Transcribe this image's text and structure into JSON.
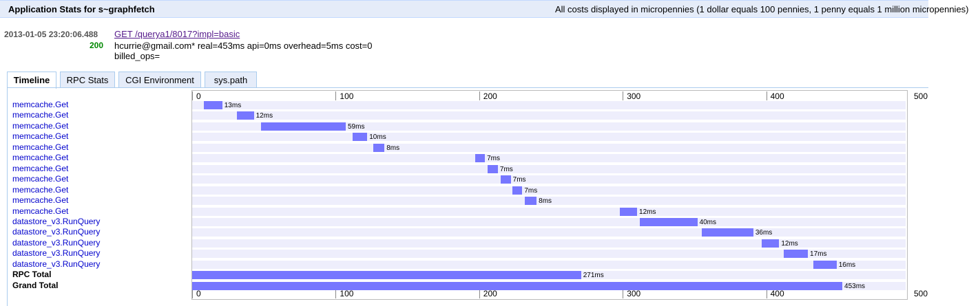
{
  "header": {
    "title": "Application Stats for s~graphfetch",
    "note": "All costs displayed in micropennies (1 dollar equals 100 pennies, 1 penny equals 1 million micropennies)"
  },
  "request": {
    "timestamp": "2013-01-05 23:20:06.488",
    "link_text": "GET /querya1/8017?impl=basic",
    "status": "200",
    "details": "hcurrie@gmail.com* real=453ms api=0ms overhead=5ms cost=0",
    "billed": "billed_ops="
  },
  "tabs": [
    {
      "label": "Timeline",
      "active": true
    },
    {
      "label": "RPC Stats",
      "active": false
    },
    {
      "label": "CGI Environment",
      "active": false
    },
    {
      "label": "sys.path",
      "active": false
    }
  ],
  "timeline": {
    "axis_max": 500,
    "ticks": [
      "0",
      "100",
      "200",
      "300",
      "400",
      "500"
    ],
    "tick_values": [
      0,
      100,
      200,
      300,
      400,
      500
    ],
    "rows": [
      {
        "label": "memcache.Get",
        "start": 8,
        "duration": 13,
        "duration_label": "13ms"
      },
      {
        "label": "memcache.Get",
        "start": 31,
        "duration": 12,
        "duration_label": "12ms"
      },
      {
        "label": "memcache.Get",
        "start": 48,
        "duration": 59,
        "duration_label": "59ms"
      },
      {
        "label": "memcache.Get",
        "start": 112,
        "duration": 10,
        "duration_label": "10ms"
      },
      {
        "label": "memcache.Get",
        "start": 126,
        "duration": 8,
        "duration_label": "8ms"
      },
      {
        "label": "memcache.Get",
        "start": 197,
        "duration": 7,
        "duration_label": "7ms"
      },
      {
        "label": "memcache.Get",
        "start": 206,
        "duration": 7,
        "duration_label": "7ms"
      },
      {
        "label": "memcache.Get",
        "start": 215,
        "duration": 7,
        "duration_label": "7ms"
      },
      {
        "label": "memcache.Get",
        "start": 223,
        "duration": 7,
        "duration_label": "7ms"
      },
      {
        "label": "memcache.Get",
        "start": 232,
        "duration": 8,
        "duration_label": "8ms"
      },
      {
        "label": "memcache.Get",
        "start": 298,
        "duration": 12,
        "duration_label": "12ms"
      },
      {
        "label": "datastore_v3.RunQuery",
        "start": 312,
        "duration": 40,
        "duration_label": "40ms"
      },
      {
        "label": "datastore_v3.RunQuery",
        "start": 355,
        "duration": 36,
        "duration_label": "36ms"
      },
      {
        "label": "datastore_v3.RunQuery",
        "start": 397,
        "duration": 12,
        "duration_label": "12ms"
      },
      {
        "label": "datastore_v3.RunQuery",
        "start": 412,
        "duration": 17,
        "duration_label": "17ms"
      },
      {
        "label": "datastore_v3.RunQuery",
        "start": 433,
        "duration": 16,
        "duration_label": "16ms"
      }
    ],
    "totals": [
      {
        "label": "RPC Total",
        "start": 0,
        "duration": 271,
        "duration_label": "271ms"
      },
      {
        "label": "Grand Total",
        "start": 0,
        "duration": 453,
        "duration_label": "453ms"
      }
    ]
  }
}
